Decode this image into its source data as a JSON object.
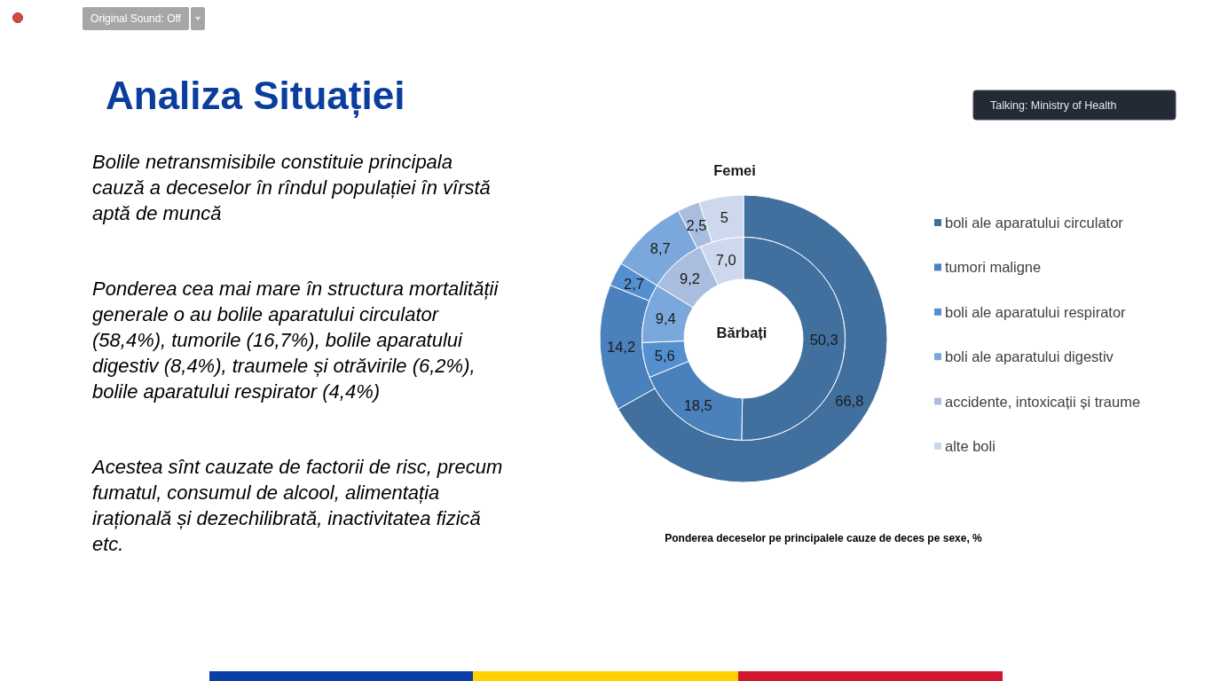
{
  "chart_data": {
    "type": "donut",
    "title": "Analiza Situației",
    "categories": [
      "boli ale aparatului circulator",
      "tumori maligne",
      "boli ale aparatului respirator",
      "boli ale aparatului digestiv",
      "accidente, intoxicații și traume",
      "alte boli"
    ],
    "colors": [
      "#41709f",
      "#4a80bb",
      "#5490d0",
      "#7ba8dc",
      "#a9bedf",
      "#cdd8ee"
    ],
    "series": [
      {
        "name": "Femei",
        "values": [
          66.8,
          14.2,
          2.7,
          8.7,
          2.5,
          5
        ],
        "value_labels": [
          "66,8",
          "14,2",
          "2,7",
          "8,7",
          "2,5",
          "5"
        ]
      },
      {
        "name": "Bărbați",
        "values": [
          50.3,
          18.5,
          5.6,
          9.4,
          9.2,
          7.0
        ],
        "value_labels": [
          "50,3",
          "18,5",
          "5,6",
          "9,4",
          "9,2",
          "7,0"
        ]
      }
    ],
    "legend": "right",
    "annotations": [
      "Original Sound: Off",
      "Talking: Ministry of Health",
      "Bolile netransmisibile constituie principala\ncauză a deceselor în rîndul populației în vîrstă\naptă de muncă",
      "Ponderea cea mai mare în structura mortalității\ngenerale o au bolile aparatului circulator\n(58,4%), tumorile (16,7%), bolile aparatului\ndigestiv (8,4%), traumele și otrăvirile (6,2%),\nbolile aparatului respirator (4,4%)",
      "Acestea sînt cauzate de factorii de risc, precum\nfumatul, consumul de alcool, alimentația\nirațională și dezechilibrată, inactivitatea fizică\netc.",
      "Ponderea deceselor pe principalele cauze de deces pe sexe, %"
    ]
  }
}
